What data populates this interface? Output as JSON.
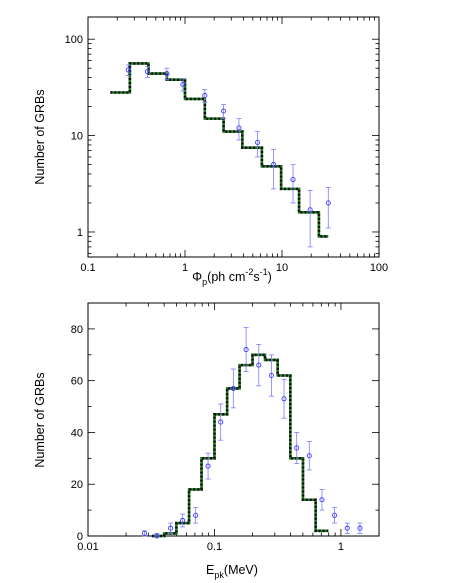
{
  "chart_data": [
    {
      "type": "step+scatter",
      "xlabel": "Φp(ph cm⁻²s⁻¹)",
      "ylabel": "Number of GRBs",
      "xscale": "log",
      "yscale": "log",
      "xlim": [
        0.1,
        100
      ],
      "ylim": [
        0.55,
        170
      ],
      "x_ticks": [
        "0.1",
        "1",
        "10",
        "100"
      ],
      "y_ticks": [
        "1",
        "10",
        "100"
      ],
      "model_step": {
        "edges": [
          0.17,
          0.27,
          0.42,
          0.65,
          1.0,
          1.6,
          2.5,
          3.9,
          6.2,
          9.8,
          15.0,
          24.0,
          30.0
        ],
        "values": [
          28,
          56,
          44,
          38,
          24,
          15,
          11,
          7.5,
          4.8,
          2.8,
          1.6,
          0.9
        ]
      },
      "observed": {
        "x": [
          0.26,
          0.41,
          0.65,
          0.95,
          1.6,
          2.5,
          3.6,
          5.6,
          8.2,
          13.0,
          19.5,
          30.0
        ],
        "y": [
          48,
          46,
          44,
          34,
          26,
          18,
          12,
          8.5,
          5.0,
          3.5,
          1.7,
          2.0
        ],
        "yerr": [
          6,
          6,
          6,
          5,
          4,
          3,
          3,
          2.5,
          2.2,
          1.5,
          1.0,
          0.9
        ]
      }
    },
    {
      "type": "step+scatter",
      "xlabel": "Epk(MeV)",
      "ylabel": "Number of GRBs",
      "xscale": "log",
      "yscale": "linear",
      "xlim": [
        0.01,
        2.0
      ],
      "ylim": [
        0,
        90
      ],
      "x_ticks": [
        "0.01",
        "0.1",
        "1"
      ],
      "y_ticks": [
        "0",
        "20",
        "40",
        "60",
        "80"
      ],
      "model_step": {
        "edges": [
          0.032,
          0.04,
          0.05,
          0.063,
          0.079,
          0.1,
          0.126,
          0.158,
          0.2,
          0.251,
          0.316,
          0.398,
          0.501,
          0.631,
          0.794
        ],
        "values": [
          0,
          1,
          5,
          18,
          30,
          47,
          57,
          66,
          70,
          68,
          62,
          30,
          14,
          2
        ]
      },
      "observed": {
        "x": [
          0.028,
          0.035,
          0.045,
          0.056,
          0.071,
          0.089,
          0.112,
          0.141,
          0.178,
          0.224,
          0.282,
          0.355,
          0.447,
          0.562,
          0.708,
          0.891,
          1.122,
          1.413
        ],
        "y": [
          1,
          0,
          3,
          6,
          8,
          27,
          44,
          57,
          72,
          66,
          62,
          53,
          34,
          31,
          14,
          8,
          3,
          3
        ],
        "yerr": [
          1,
          1,
          2,
          2.5,
          3,
          5,
          7,
          7.5,
          8.5,
          8,
          8,
          7.5,
          6,
          5.5,
          4,
          3,
          2,
          2
        ]
      }
    }
  ]
}
